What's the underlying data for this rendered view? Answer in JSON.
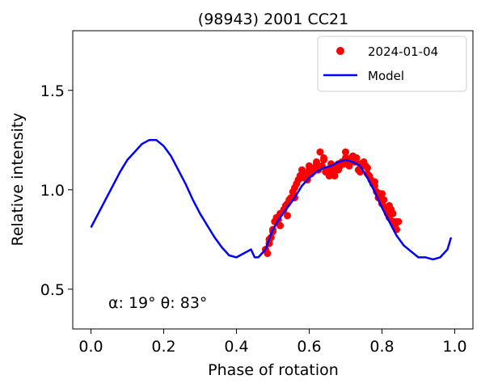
{
  "chart_data": {
    "type": "scatter",
    "title": "(98943) 2001 CC21",
    "xlabel": "Phase of rotation",
    "ylabel": "Relative intensity",
    "xlim": [
      -0.05,
      1.05
    ],
    "ylim": [
      0.3,
      1.8
    ],
    "xticks": [
      0.0,
      0.2,
      0.4,
      0.6,
      0.8,
      1.0
    ],
    "xtick_labels": [
      "0.0",
      "0.2",
      "0.4",
      "0.6",
      "0.8",
      "1.0"
    ],
    "yticks": [
      0.5,
      1.0,
      1.5
    ],
    "ytick_labels": [
      "0.5",
      "1.0",
      "1.5"
    ],
    "grid": false,
    "legend_position": "top-right",
    "annotation": "α: 19° θ: 83°",
    "series": [
      {
        "name": "2024-01-04",
        "kind": "scatter",
        "color": "#ff0000",
        "x": [
          0.48,
          0.485,
          0.49,
          0.495,
          0.5,
          0.505,
          0.51,
          0.515,
          0.52,
          0.53,
          0.535,
          0.54,
          0.545,
          0.55,
          0.555,
          0.56,
          0.565,
          0.57,
          0.575,
          0.58,
          0.585,
          0.59,
          0.595,
          0.6,
          0.605,
          0.61,
          0.615,
          0.62,
          0.625,
          0.63,
          0.635,
          0.64,
          0.645,
          0.65,
          0.655,
          0.66,
          0.665,
          0.67,
          0.675,
          0.68,
          0.685,
          0.69,
          0.695,
          0.7,
          0.705,
          0.71,
          0.715,
          0.72,
          0.725,
          0.73,
          0.735,
          0.74,
          0.745,
          0.75,
          0.755,
          0.76,
          0.765,
          0.77,
          0.775,
          0.78,
          0.785,
          0.79,
          0.795,
          0.8,
          0.805,
          0.81,
          0.815,
          0.82,
          0.825,
          0.83,
          0.835,
          0.84,
          0.845,
          0.49,
          0.5,
          0.52,
          0.54,
          0.56,
          0.58,
          0.6,
          0.62,
          0.64,
          0.66,
          0.68,
          0.7,
          0.72,
          0.74,
          0.76,
          0.78,
          0.8,
          0.82,
          0.83,
          0.84
        ],
        "y": [
          0.7,
          0.68,
          0.73,
          0.76,
          0.8,
          0.84,
          0.86,
          0.85,
          0.88,
          0.9,
          0.92,
          0.93,
          0.95,
          0.96,
          0.99,
          1.01,
          1.03,
          1.05,
          1.07,
          1.1,
          1.06,
          1.08,
          1.05,
          1.12,
          1.08,
          1.09,
          1.11,
          1.14,
          1.1,
          1.19,
          1.12,
          1.15,
          1.09,
          1.1,
          1.07,
          1.08,
          1.11,
          1.07,
          1.1,
          1.13,
          1.12,
          1.14,
          1.13,
          1.19,
          1.15,
          1.12,
          1.16,
          1.17,
          1.14,
          1.16,
          1.1,
          1.13,
          1.12,
          1.14,
          1.12,
          1.11,
          1.07,
          1.05,
          1.03,
          1.02,
          0.99,
          0.96,
          0.98,
          0.93,
          0.95,
          0.91,
          0.88,
          0.86,
          0.9,
          0.84,
          0.82,
          0.8,
          0.84,
          0.75,
          0.79,
          0.82,
          0.87,
          0.96,
          1.08,
          1.1,
          1.13,
          1.16,
          1.13,
          1.1,
          1.16,
          1.15,
          1.09,
          1.08,
          1.04,
          0.98,
          0.92,
          0.88,
          0.84
        ]
      },
      {
        "name": "Model",
        "kind": "line",
        "color": "#0000ff",
        "x": [
          0.0,
          0.02,
          0.04,
          0.06,
          0.08,
          0.1,
          0.12,
          0.14,
          0.16,
          0.17,
          0.18,
          0.2,
          0.22,
          0.24,
          0.26,
          0.28,
          0.3,
          0.32,
          0.34,
          0.36,
          0.38,
          0.4,
          0.42,
          0.44,
          0.45,
          0.46,
          0.48,
          0.5,
          0.52,
          0.54,
          0.56,
          0.58,
          0.6,
          0.62,
          0.64,
          0.66,
          0.68,
          0.7,
          0.72,
          0.74,
          0.76,
          0.78,
          0.8,
          0.82,
          0.84,
          0.86,
          0.88,
          0.9,
          0.92,
          0.94,
          0.96,
          0.98,
          0.99
        ],
        "y": [
          0.81,
          0.88,
          0.95,
          1.02,
          1.09,
          1.15,
          1.19,
          1.23,
          1.25,
          1.25,
          1.25,
          1.22,
          1.17,
          1.1,
          1.03,
          0.95,
          0.88,
          0.82,
          0.76,
          0.71,
          0.67,
          0.66,
          0.68,
          0.7,
          0.66,
          0.66,
          0.7,
          0.8,
          0.86,
          0.91,
          0.96,
          1.02,
          1.06,
          1.09,
          1.11,
          1.12,
          1.14,
          1.15,
          1.14,
          1.12,
          1.06,
          0.99,
          0.91,
          0.84,
          0.77,
          0.72,
          0.69,
          0.66,
          0.66,
          0.65,
          0.66,
          0.7,
          0.76
        ]
      }
    ]
  }
}
